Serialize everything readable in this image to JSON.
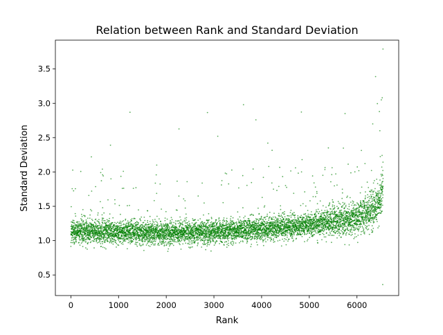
{
  "chart_data": {
    "type": "scatter",
    "title": "Relation between Rank and Standard Deviation",
    "xlabel": "Rank",
    "ylabel": "Standard Deviation",
    "xlim": [
      -325,
      6875
    ],
    "ylim": [
      0.2,
      3.92
    ],
    "xticks": [
      0,
      1000,
      2000,
      3000,
      4000,
      5000,
      6000
    ],
    "yticks": [
      0.5,
      1.0,
      1.5,
      2.0,
      2.5,
      3.0,
      3.5
    ],
    "xtick_labels": [
      "0",
      "1000",
      "2000",
      "3000",
      "4000",
      "5000",
      "6000"
    ],
    "ytick_labels": [
      "0.5",
      "1.0",
      "1.5",
      "2.0",
      "2.5",
      "3.0",
      "3.5"
    ],
    "marker_color": "#008000",
    "grid": false,
    "legend": "none",
    "approx_point_count": 6548,
    "trend": [
      {
        "x": 0,
        "y": 1.15
      },
      {
        "x": 1000,
        "y": 1.12
      },
      {
        "x": 2000,
        "y": 1.11
      },
      {
        "x": 3000,
        "y": 1.13
      },
      {
        "x": 4000,
        "y": 1.17
      },
      {
        "x": 5000,
        "y": 1.23
      },
      {
        "x": 5500,
        "y": 1.28
      },
      {
        "x": 6000,
        "y": 1.35
      },
      {
        "x": 6300,
        "y": 1.45
      },
      {
        "x": 6450,
        "y": 1.55
      },
      {
        "x": 6548,
        "y": 1.8
      }
    ],
    "outliers": [
      {
        "x": 430,
        "y": 2.22
      },
      {
        "x": 830,
        "y": 2.39
      },
      {
        "x": 1240,
        "y": 2.87
      },
      {
        "x": 1100,
        "y": 2.01
      },
      {
        "x": 1800,
        "y": 2.1
      },
      {
        "x": 3080,
        "y": 2.52
      },
      {
        "x": 3880,
        "y": 2.76
      },
      {
        "x": 4130,
        "y": 2.42
      },
      {
        "x": 5750,
        "y": 2.85
      },
      {
        "x": 6330,
        "y": 2.7
      },
      {
        "x": 6390,
        "y": 3.39
      },
      {
        "x": 6470,
        "y": 2.88
      },
      {
        "x": 6510,
        "y": 3.05
      },
      {
        "x": 6530,
        "y": 3.08
      },
      {
        "x": 6545,
        "y": 3.79
      },
      {
        "x": 6540,
        "y": 0.36
      },
      {
        "x": 6480,
        "y": 2.6
      },
      {
        "x": 5400,
        "y": 2.35
      }
    ]
  }
}
